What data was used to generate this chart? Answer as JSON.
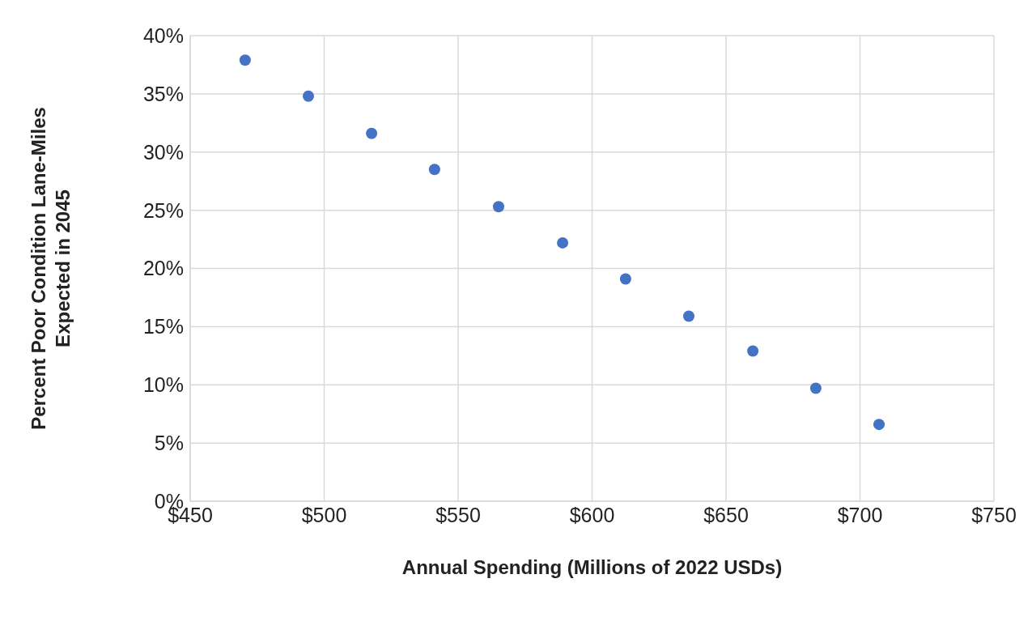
{
  "chart_data": {
    "type": "scatter",
    "xlabel": "Annual Spending (Millions of 2022 USDs)",
    "ylabel": "Percent Poor Condition Lane-Miles\nExpected in 2045",
    "x": [
      470.5,
      494.1,
      517.7,
      541.2,
      565.1,
      589.0,
      612.5,
      636.1,
      660.0,
      683.5,
      707.1
    ],
    "values": [
      37.9,
      34.8,
      31.6,
      28.5,
      25.3,
      22.2,
      19.1,
      15.9,
      12.9,
      9.7,
      6.6
    ],
    "color": "#4472c4",
    "marker": "circle",
    "xlim": [
      450,
      750
    ],
    "xticks": [
      {
        "value": 450,
        "label": "$450"
      },
      {
        "value": 500,
        "label": "$500"
      },
      {
        "value": 550,
        "label": "$550"
      },
      {
        "value": 600,
        "label": "$600"
      },
      {
        "value": 650,
        "label": "$650"
      },
      {
        "value": 700,
        "label": "$700"
      },
      {
        "value": 750,
        "label": "$750"
      }
    ],
    "ylim": [
      0,
      40
    ],
    "yticks": [
      {
        "value": 0,
        "label": "0%"
      },
      {
        "value": 5,
        "label": "5%"
      },
      {
        "value": 10,
        "label": "10%"
      },
      {
        "value": 15,
        "label": "15%"
      },
      {
        "value": 20,
        "label": "20%"
      },
      {
        "value": 25,
        "label": "25%"
      },
      {
        "value": 30,
        "label": "30%"
      },
      {
        "value": 35,
        "label": "35%"
      },
      {
        "value": 40,
        "label": "40%"
      }
    ],
    "grid": true
  }
}
